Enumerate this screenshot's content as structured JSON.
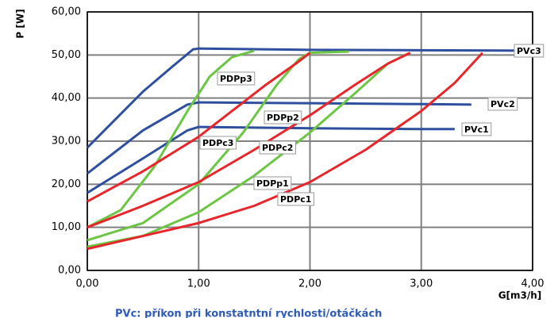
{
  "chart_data": {
    "type": "line",
    "y_label": "P [W]",
    "x_label": "G[m3/h]",
    "note": "PVc:    příkon při konstatntní rychlosti/otáčkách",
    "xlim": [
      0,
      4
    ],
    "ylim": [
      0,
      60
    ],
    "grid": true,
    "xticks": [
      {
        "value": 0,
        "label": "0,00"
      },
      {
        "value": 1,
        "label": "1,00"
      },
      {
        "value": 2,
        "label": "2,00"
      },
      {
        "value": 3,
        "label": "3,00"
      },
      {
        "value": 4,
        "label": "4,00"
      }
    ],
    "yticks": [
      {
        "value": 0,
        "label": "0,00"
      },
      {
        "value": 10,
        "label": "10,00"
      },
      {
        "value": 20,
        "label": "20,00"
      },
      {
        "value": 30,
        "label": "30,00"
      },
      {
        "value": 40,
        "label": "40,00"
      },
      {
        "value": 50,
        "label": "50,00"
      },
      {
        "value": 60,
        "label": "60,00"
      }
    ],
    "series": [
      {
        "name": "PVc3",
        "color": "#2e4f9e",
        "x": [
          0,
          0.25,
          0.5,
          0.75,
          0.95,
          1.0,
          2.0,
          3.0,
          3.95
        ],
        "values": [
          28.5,
          35,
          41.5,
          47,
          51.3,
          51.5,
          51.2,
          51.1,
          51
        ]
      },
      {
        "name": "PVc2",
        "color": "#2e4f9e",
        "x": [
          0,
          0.5,
          0.9,
          1.0,
          2.0,
          3.0,
          3.45
        ],
        "values": [
          22.5,
          32.5,
          38.5,
          39,
          38.8,
          38.6,
          38.5
        ]
      },
      {
        "name": "PVc1",
        "color": "#2e4f9e",
        "x": [
          0,
          0.5,
          0.9,
          1.0,
          2.0,
          3.0,
          3.3
        ],
        "values": [
          18,
          26,
          32.5,
          33.3,
          33,
          32.8,
          32.8
        ]
      },
      {
        "name": "PDPp3",
        "color": "#6cc644",
        "x": [
          0,
          0.3,
          0.6,
          0.9,
          1.1,
          1.3,
          1.5
        ],
        "values": [
          10,
          14,
          24,
          37,
          45,
          49.5,
          51
        ]
      },
      {
        "name": "PDPp2",
        "color": "#6cc644",
        "x": [
          0,
          0.5,
          1.0,
          1.4,
          1.7,
          1.9,
          2.0,
          2.35
        ],
        "values": [
          7,
          11,
          20,
          32,
          43,
          49,
          50.5,
          50.8
        ]
      },
      {
        "name": "PDPp1",
        "color": "#6cc644",
        "x": [
          0,
          0.5,
          1.0,
          1.5,
          2.0,
          2.4,
          2.7,
          2.9
        ],
        "values": [
          5.5,
          8,
          13.5,
          22,
          32,
          41,
          48,
          50.5
        ]
      },
      {
        "name": "PDPc3",
        "color": "#e8252b",
        "x": [
          0,
          0.5,
          1.0,
          1.3,
          1.6,
          1.9,
          2.0
        ],
        "values": [
          16,
          23,
          31,
          37,
          43,
          48.5,
          50.5
        ]
      },
      {
        "name": "PDPc2",
        "color": "#e8252b",
        "x": [
          0,
          0.5,
          1.0,
          1.5,
          2.0,
          2.4,
          2.7,
          2.9
        ],
        "values": [
          10,
          15,
          20.5,
          28,
          36,
          43,
          48,
          50.5
        ]
      },
      {
        "name": "PDPc1",
        "color": "#e8252b",
        "x": [
          0,
          0.5,
          1.0,
          1.5,
          2.0,
          2.5,
          3.0,
          3.3,
          3.55
        ],
        "values": [
          5,
          8,
          11,
          15,
          20.5,
          28,
          37,
          43.5,
          50.5
        ]
      }
    ]
  }
}
